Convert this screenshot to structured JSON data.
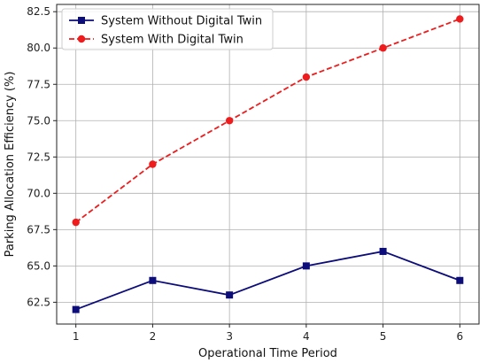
{
  "chart_data": {
    "type": "line",
    "title": "",
    "xlabel": "Operational Time Period",
    "ylabel": "Parking Allocation Efficiency (%)",
    "x": [
      1,
      2,
      3,
      4,
      5,
      6
    ],
    "xlim": [
      0.75,
      6.25
    ],
    "ylim": [
      61.0,
      83.0
    ],
    "x_ticks": [
      1,
      2,
      3,
      4,
      5,
      6
    ],
    "y_ticks": [
      62.5,
      65.0,
      67.5,
      70.0,
      72.5,
      75.0,
      77.5,
      80.0,
      82.5
    ],
    "grid": true,
    "legend_position": "top-left",
    "series": [
      {
        "name": "System Without Digital Twin",
        "values": [
          62,
          64,
          63,
          65,
          66,
          64
        ],
        "color": "#0c0c7a",
        "line_style": "solid",
        "marker": "square"
      },
      {
        "name": "System With Digital Twin",
        "values": [
          68,
          72,
          75,
          78,
          80,
          82
        ],
        "color": "#ee1c1c",
        "line_style": "dashed",
        "marker": "circle"
      }
    ]
  }
}
